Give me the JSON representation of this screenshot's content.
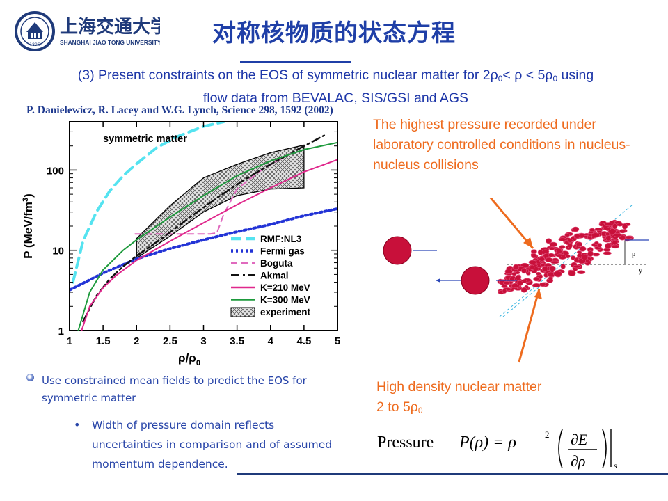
{
  "header": {
    "university_cn": "上海交通大学",
    "university_en": "SHANGHAI JIAO TONG UNIVERSITY",
    "seal_year": "1896",
    "title": "对称核物质的状态方程"
  },
  "subtitle": {
    "line1_prefix": "(3) Present constraints on the EOS of symmetric nuclear matter for 2ρ",
    "line1_sub1": "0",
    "line1_mid": "< ρ < 5ρ",
    "line1_sub2": "0",
    "line1_suffix": " using",
    "line2": "flow data from BEVALAC, SIS/GSI and AGS"
  },
  "citation": "P. Danielewicz,  R. Lacey and W.G. Lynch, Science 298, 1592 (2002)",
  "chart_data": {
    "type": "line",
    "title": "symmetric matter",
    "xlabel": "ρ/ρ",
    "xlabel_sub": "0",
    "ylabel": "P (MeV/fm",
    "ylabel_sup": "3",
    "ylabel_end": ")",
    "xlim": [
      1,
      5
    ],
    "ylim": [
      1,
      400
    ],
    "yscale": "log",
    "x_ticks": [
      1,
      1.5,
      2,
      2.5,
      3,
      3.5,
      4,
      4.5,
      5
    ],
    "x_tick_labels": [
      "1",
      "1.5",
      "2",
      "2.5",
      "3",
      "3.5",
      "4",
      "4.5",
      "5"
    ],
    "y_ticks": [
      1,
      10,
      100
    ],
    "y_tick_labels": [
      "1",
      "10",
      "100"
    ],
    "legend_position": "bottom-right",
    "series": [
      {
        "name": "RMF:NL3",
        "color": "#55e3f0",
        "dash": "long-dash",
        "x": [
          1.05,
          1.2,
          1.4,
          1.6,
          1.8,
          2.0,
          2.3,
          2.6,
          3.0,
          3.3
        ],
        "y": [
          4,
          13,
          30,
          55,
          85,
          120,
          190,
          260,
          350,
          400
        ]
      },
      {
        "name": "Fermi gas",
        "color": "#2233d6",
        "dash": "dot",
        "x": [
          1.0,
          1.5,
          2.0,
          2.5,
          3.0,
          3.5,
          4.0,
          4.5,
          5.0
        ],
        "y": [
          3.2,
          5.2,
          7.8,
          10.5,
          13.5,
          17,
          21,
          27,
          33
        ]
      },
      {
        "name": "Boguta",
        "color": "#e06abe",
        "dash": "dash",
        "x": [
          1.98,
          2.3,
          2.6,
          3.0,
          3.1,
          3.2,
          3.3,
          3.5,
          3.9,
          4.3
        ],
        "y": [
          16,
          16,
          16,
          16,
          16,
          16.5,
          28,
          58,
          105,
          160
        ]
      },
      {
        "name": "Akmal",
        "color": "#111111",
        "dash": "dash-dot",
        "x": [
          1.2,
          1.4,
          1.6,
          1.8,
          2.0,
          2.4,
          2.8,
          3.2,
          3.6,
          4.0,
          4.4,
          4.8
        ],
        "y": [
          1.3,
          2.7,
          4.4,
          6.3,
          8.5,
          14.5,
          26,
          45,
          75,
          118,
          180,
          270
        ]
      },
      {
        "name": "K=210 MeV",
        "color": "#e0288c",
        "dash": "solid",
        "x": [
          1.18,
          1.3,
          1.5,
          1.7,
          2.0,
          2.5,
          3.0,
          3.5,
          4.0,
          4.5,
          5.0
        ],
        "y": [
          1.0,
          2.0,
          3.4,
          4.9,
          7.5,
          13,
          22,
          37,
          60,
          95,
          135
        ]
      },
      {
        "name": "K=300 MeV",
        "color": "#1d9a3c",
        "dash": "solid",
        "x": [
          1.13,
          1.3,
          1.5,
          1.8,
          2.0,
          2.5,
          3.0,
          3.5,
          4.0,
          4.5,
          5.0
        ],
        "y": [
          1.0,
          3.0,
          5.7,
          10,
          13.5,
          26,
          48,
          85,
          130,
          180,
          220
        ]
      },
      {
        "name": "experiment",
        "color": "#000000",
        "dash": "hatched-band",
        "upper_x": [
          2.0,
          2.5,
          3.0,
          3.5,
          4.0,
          4.5
        ],
        "upper_y": [
          14,
          36,
          80,
          118,
          165,
          205
        ],
        "lower_x": [
          2.0,
          2.5,
          3.0,
          3.5,
          4.0,
          4.5
        ],
        "lower_y": [
          8,
          15,
          30,
          48,
          58,
          60
        ]
      }
    ]
  },
  "notes": {
    "highest_pressure": "The highest pressure recorded under laboratory controlled conditions in nucleus-nucleus  collisions",
    "density_line1": "High density nuclear matter",
    "density_line2_prefix": "2 to 5ρ",
    "density_line2_sub": "0"
  },
  "collision_labels": {
    "p": "p",
    "y": "y"
  },
  "formula": {
    "lhs": "Pressure",
    "p_rho": "P(ρ) = ρ",
    "power": "2",
    "numerator": "∂E",
    "denominator": "∂ρ",
    "subscript": "s"
  },
  "bullets": {
    "main": "Use constrained mean fields to predict the EOS for symmetric matter",
    "sub": "Width of pressure domain reflects uncertainties in comparison and of assumed momentum dependence."
  },
  "colors": {
    "title_blue": "#1f3fa7",
    "note_orange": "#ee6b1e",
    "nucleus_red": "#c8103a"
  }
}
